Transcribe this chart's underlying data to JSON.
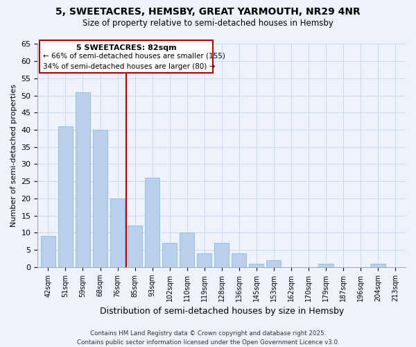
{
  "title": "5, SWEETACRES, HEMSBY, GREAT YARMOUTH, NR29 4NR",
  "subtitle": "Size of property relative to semi-detached houses in Hemsby",
  "xlabel": "Distribution of semi-detached houses by size in Hemsby",
  "ylabel": "Number of semi-detached properties",
  "bar_labels": [
    "42sqm",
    "51sqm",
    "59sqm",
    "68sqm",
    "76sqm",
    "85sqm",
    "93sqm",
    "102sqm",
    "110sqm",
    "119sqm",
    "128sqm",
    "136sqm",
    "145sqm",
    "153sqm",
    "162sqm",
    "170sqm",
    "179sqm",
    "187sqm",
    "196sqm",
    "204sqm",
    "213sqm"
  ],
  "bar_values": [
    9,
    41,
    51,
    40,
    20,
    12,
    26,
    7,
    10,
    4,
    7,
    4,
    1,
    2,
    0,
    0,
    1,
    0,
    0,
    1,
    0
  ],
  "bar_color": "#b8d0ea",
  "bar_edge_color": "#90b8d8",
  "highlight_color": "#aa0000",
  "ylim": [
    0,
    65
  ],
  "yticks": [
    0,
    5,
    10,
    15,
    20,
    25,
    30,
    35,
    40,
    45,
    50,
    55,
    60,
    65
  ],
  "annotation_title": "5 SWEETACRES: 82sqm",
  "annotation_line1": "← 66% of semi-detached houses are smaller (155)",
  "annotation_line2": "34% of semi-detached houses are larger (80) →",
  "footer_line1": "Contains HM Land Registry data © Crown copyright and database right 2025.",
  "footer_line2": "Contains public sector information licensed under the Open Government Licence v3.0.",
  "bg_color": "#eef2fb",
  "grid_color": "#ccd8ee",
  "red_line_x": 4.5
}
